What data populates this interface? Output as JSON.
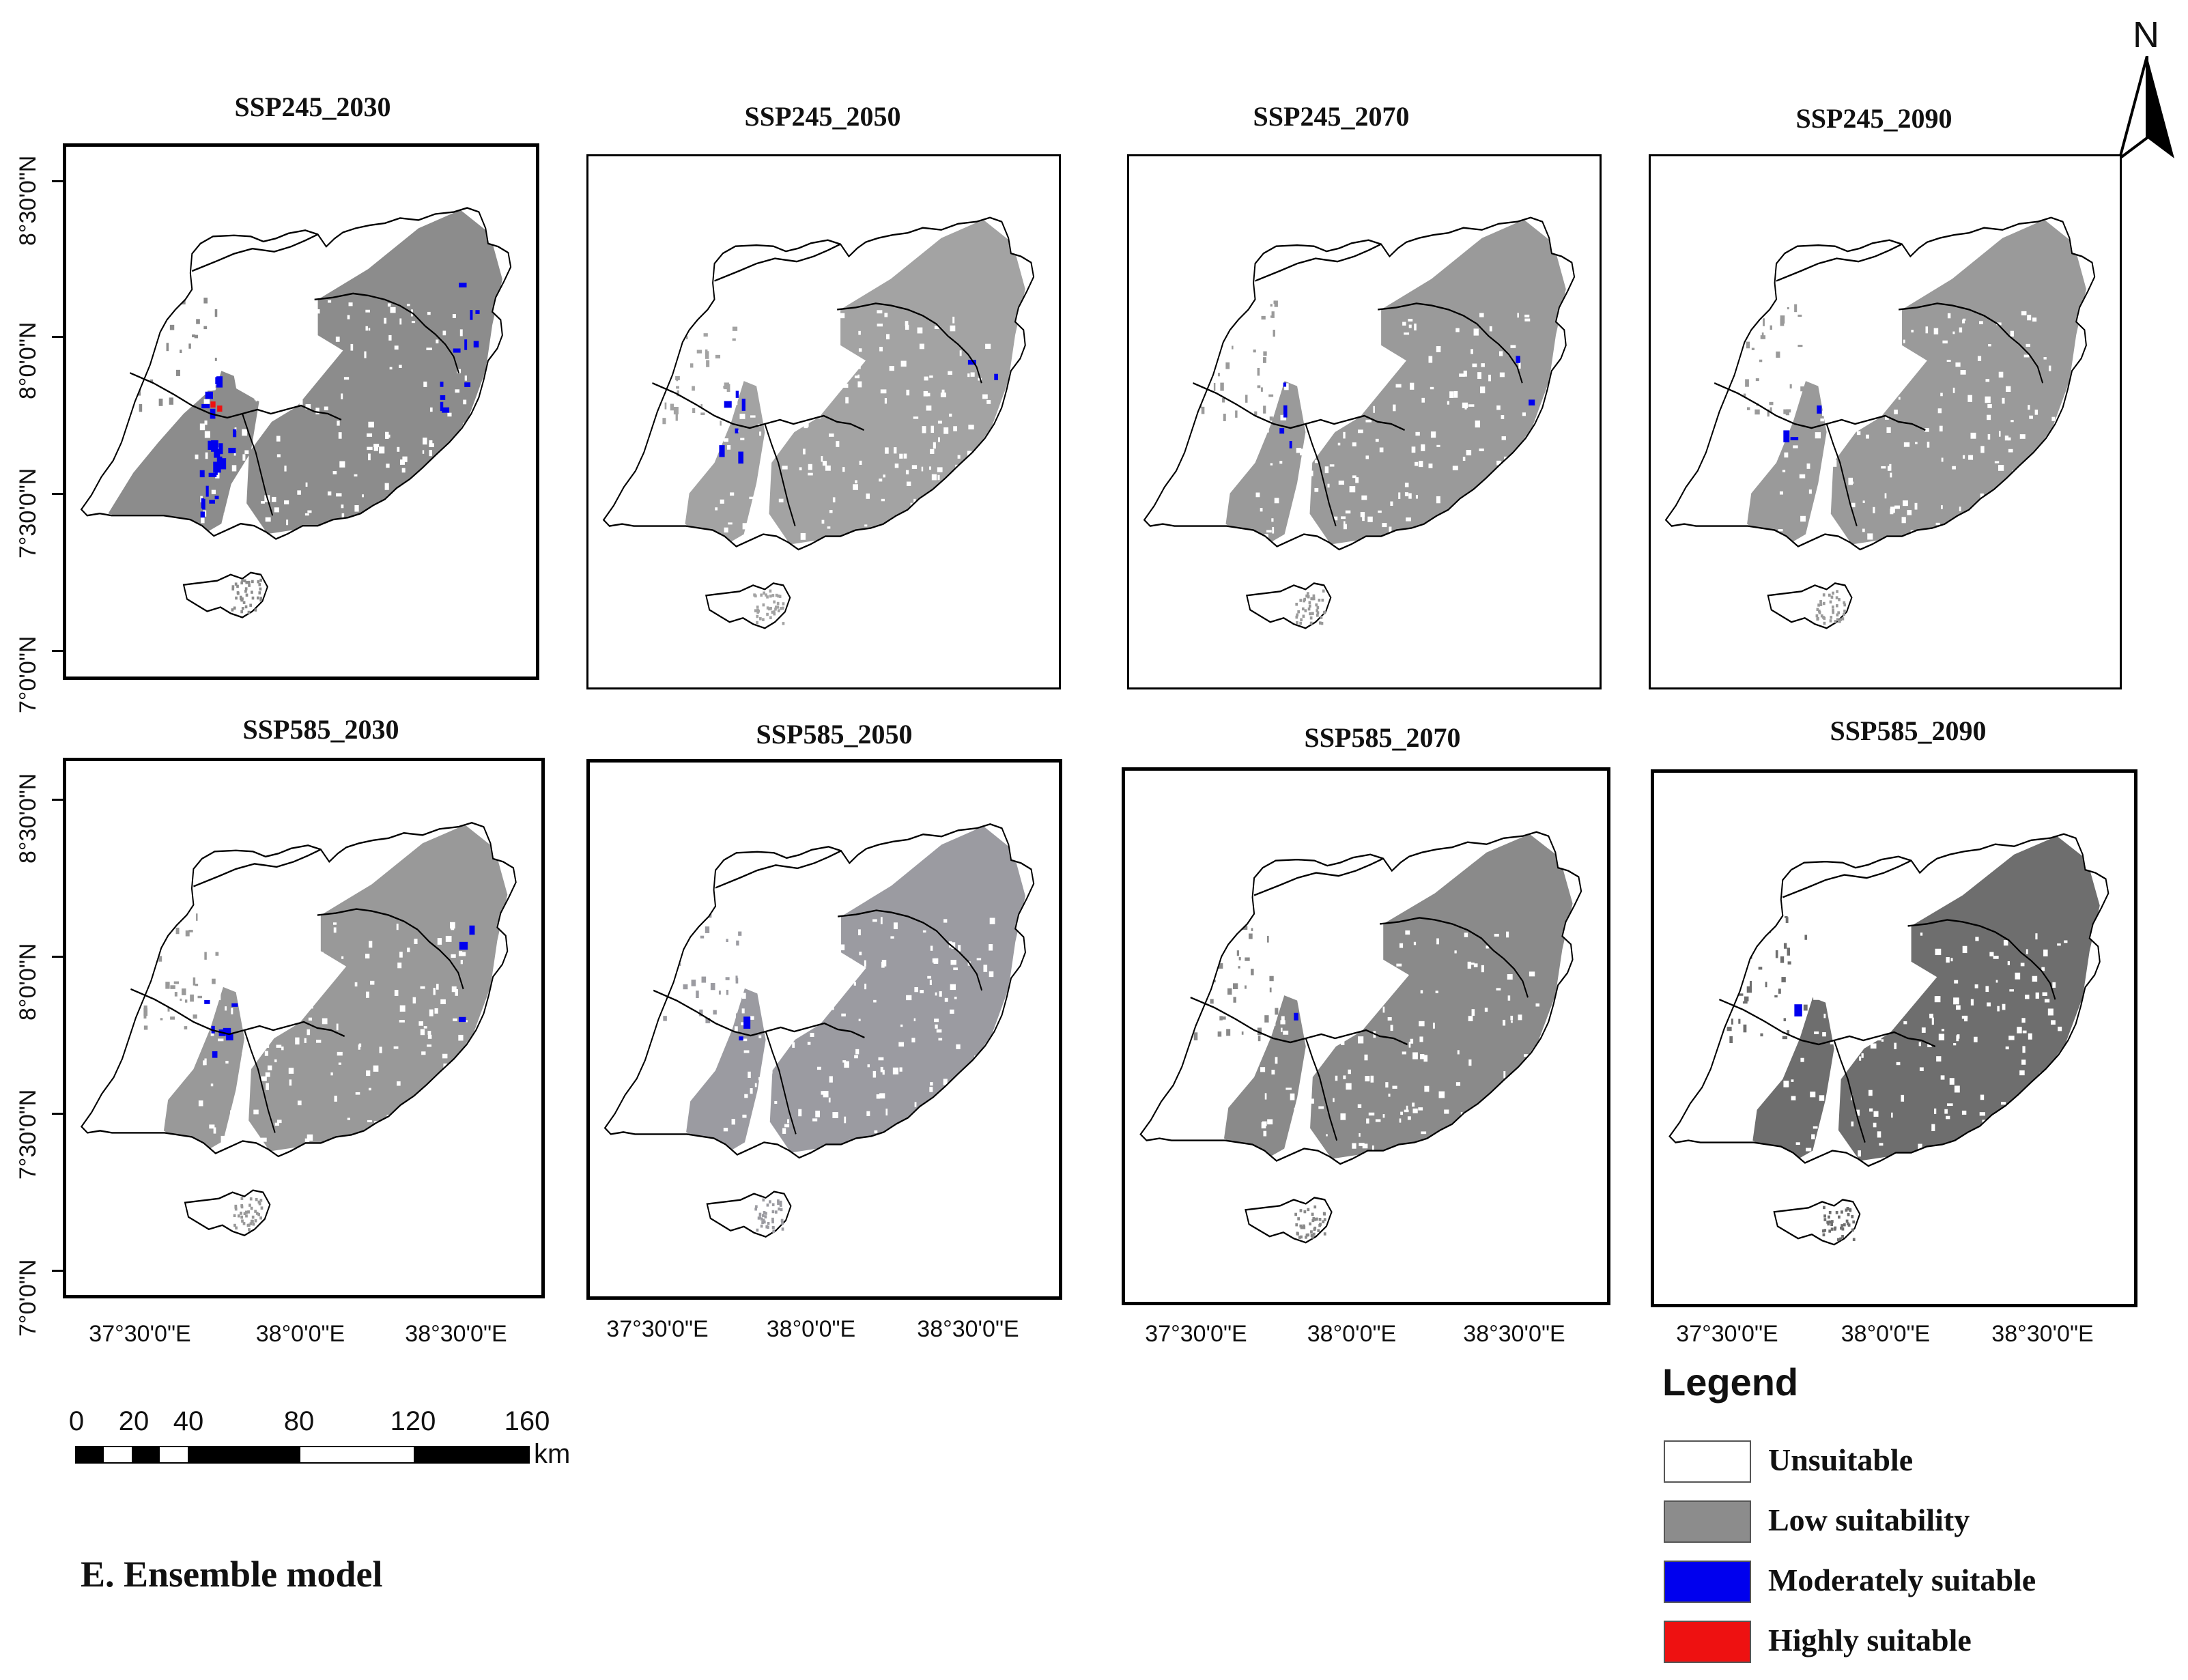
{
  "panels": [
    {
      "title": "SSP245_2030",
      "low_color": "#8c8c8c",
      "moderate_patches": 34,
      "high_patches": 2,
      "wide_spread": true
    },
    {
      "title": "SSP245_2050",
      "low_color": "#a3a3a3",
      "moderate_patches": 8,
      "high_patches": 0,
      "wide_spread": false
    },
    {
      "title": "SSP245_2070",
      "low_color": "#9a9a9a",
      "moderate_patches": 6,
      "high_patches": 0,
      "wide_spread": false
    },
    {
      "title": "SSP245_2090",
      "low_color": "#9a9a9a",
      "moderate_patches": 3,
      "high_patches": 0,
      "wide_spread": false
    },
    {
      "title": "SSP585_2030",
      "low_color": "#999999",
      "moderate_patches": 10,
      "high_patches": 0,
      "wide_spread": false
    },
    {
      "title": "SSP585_2050",
      "low_color": "#9b9ba1",
      "moderate_patches": 2,
      "high_patches": 0,
      "wide_spread": false
    },
    {
      "title": "SSP585_2070",
      "low_color": "#8a8a8a",
      "moderate_patches": 1,
      "high_patches": 0,
      "wide_spread": false
    },
    {
      "title": "SSP585_2090",
      "low_color": "#6e6e6e",
      "moderate_patches": 1,
      "high_patches": 0,
      "wide_spread": false
    }
  ],
  "lat_labels": [
    "8°30'0\"N",
    "8°0'0\"N",
    "7°30'0\"N",
    "7°0'0\"N"
  ],
  "lon_labels": [
    "37°30'0\"E",
    "38°0'0\"E",
    "38°30'0\"E"
  ],
  "north_arrow": {
    "label": "N"
  },
  "scale_bar": {
    "ticks": [
      "0",
      "20",
      "40",
      "80",
      "120",
      "160"
    ],
    "unit": "km"
  },
  "legend": {
    "title": "Legend",
    "items": [
      {
        "label": "Unsuitable",
        "color": "#ffffff"
      },
      {
        "label": "Low suitability",
        "color": "#8c8c8c"
      },
      {
        "label": "Moderately suitable",
        "color": "#0000ee"
      },
      {
        "label": "Highly suitable",
        "color": "#ee1111"
      }
    ]
  },
  "caption": "E. Ensemble model"
}
